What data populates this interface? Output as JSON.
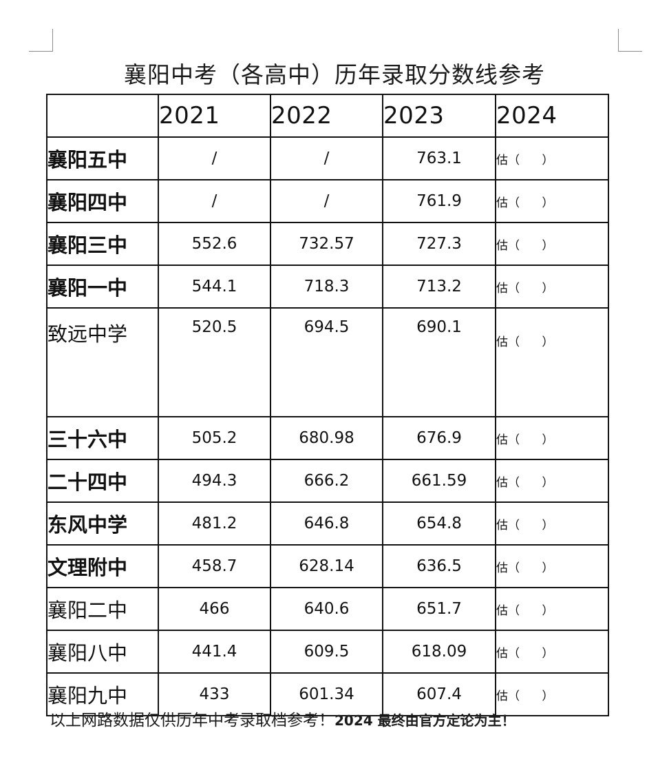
{
  "title": "襄阳中考（各高中）历年录取分数线参考",
  "table": {
    "corner": "",
    "years": [
      "2021",
      "2022",
      "2023",
      "2024"
    ],
    "estimate_text": "估（      ）",
    "rows": [
      {
        "school": "襄阳五中",
        "bold": true,
        "y2021": "/",
        "y2022": "/",
        "y2023": "763.1"
      },
      {
        "school": "襄阳四中",
        "bold": true,
        "y2021": "/",
        "y2022": "/",
        "y2023": "761.9"
      },
      {
        "school": "襄阳三中",
        "bold": true,
        "y2021": "552.6",
        "y2022": "732.57",
        "y2023": "727.3"
      },
      {
        "school": "襄阳一中",
        "bold": true,
        "y2021": "544.1",
        "y2022": "718.3",
        "y2023": "713.2"
      },
      {
        "school": "致远中学",
        "bold": false,
        "y2021": "520.5",
        "y2022": "694.5",
        "y2023": "690.1"
      },
      {
        "school": "三十六中",
        "bold": true,
        "y2021": "505.2",
        "y2022": "680.98",
        "y2023": "676.9"
      },
      {
        "school": "二十四中",
        "bold": true,
        "y2021": "494.3",
        "y2022": "666.2",
        "y2023": "661.59"
      },
      {
        "school": "东风中学",
        "bold": true,
        "y2021": "481.2",
        "y2022": "646.8",
        "y2023": "654.8"
      },
      {
        "school": "文理附中",
        "bold": true,
        "y2021": "458.7",
        "y2022": "628.14",
        "y2023": "636.5"
      },
      {
        "school": "襄阳二中",
        "bold": false,
        "y2021": "466",
        "y2022": "640.6",
        "y2023": "651.7"
      },
      {
        "school": "襄阳八中",
        "bold": false,
        "y2021": "441.4",
        "y2022": "609.5",
        "y2023": "618.09"
      },
      {
        "school": "襄阳九中",
        "bold": false,
        "y2021": "433",
        "y2022": "601.34",
        "y2023": "607.4"
      }
    ]
  },
  "footer": {
    "part1": "以上网路数据仅供历年中考录取档参考！",
    "part2": "2024 最终由官方定论为主！"
  }
}
